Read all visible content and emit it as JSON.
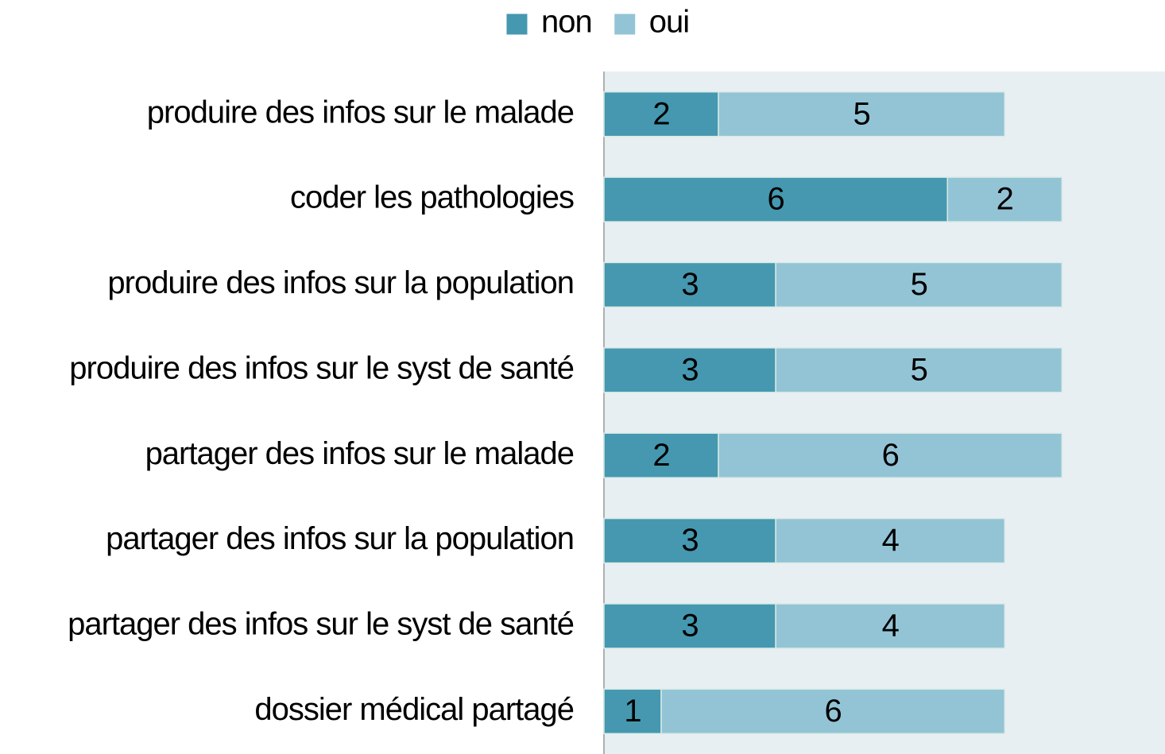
{
  "chart_data": {
    "type": "stacked-barh",
    "categories": [
      "produire des infos sur le malade",
      "coder les pathologies",
      "produire des infos sur la population",
      "produire des infos sur le syst de santé",
      "partager des infos sur le malade",
      "partager des infos sur la population",
      "partager des infos sur le syst de santé",
      "dossier médical partagé"
    ],
    "series": [
      {
        "name": "non",
        "color": "#4598b0",
        "values": [
          2,
          6,
          3,
          3,
          2,
          3,
          3,
          1
        ]
      },
      {
        "name": "oui",
        "color": "#93c4d5",
        "values": [
          5,
          2,
          5,
          5,
          6,
          4,
          4,
          6
        ]
      }
    ],
    "xlim": [
      0,
      9.8
    ],
    "legend": "top"
  }
}
